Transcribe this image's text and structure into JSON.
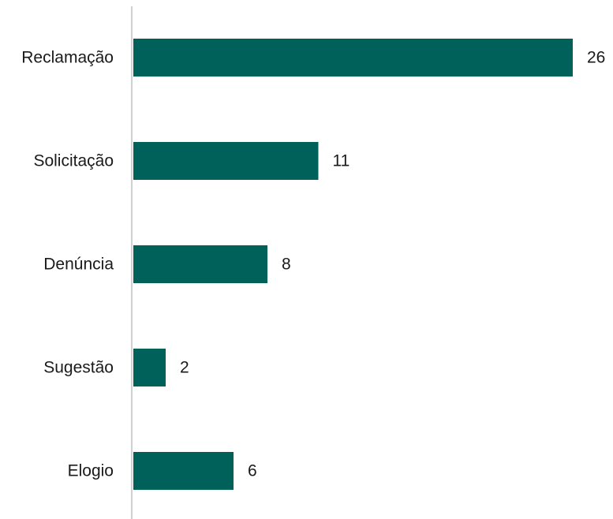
{
  "chart_data": {
    "type": "bar",
    "orientation": "horizontal",
    "categories": [
      "Reclamação",
      "Solicitação",
      "Denúncia",
      "Sugestão",
      "Elogio"
    ],
    "values": [
      26,
      11,
      8,
      2,
      6
    ],
    "xlim": [
      0,
      26
    ],
    "grid": false,
    "legend": "none",
    "bar_color": "#00605a",
    "axis_color": "#d0d0d0",
    "data_labels": true
  }
}
